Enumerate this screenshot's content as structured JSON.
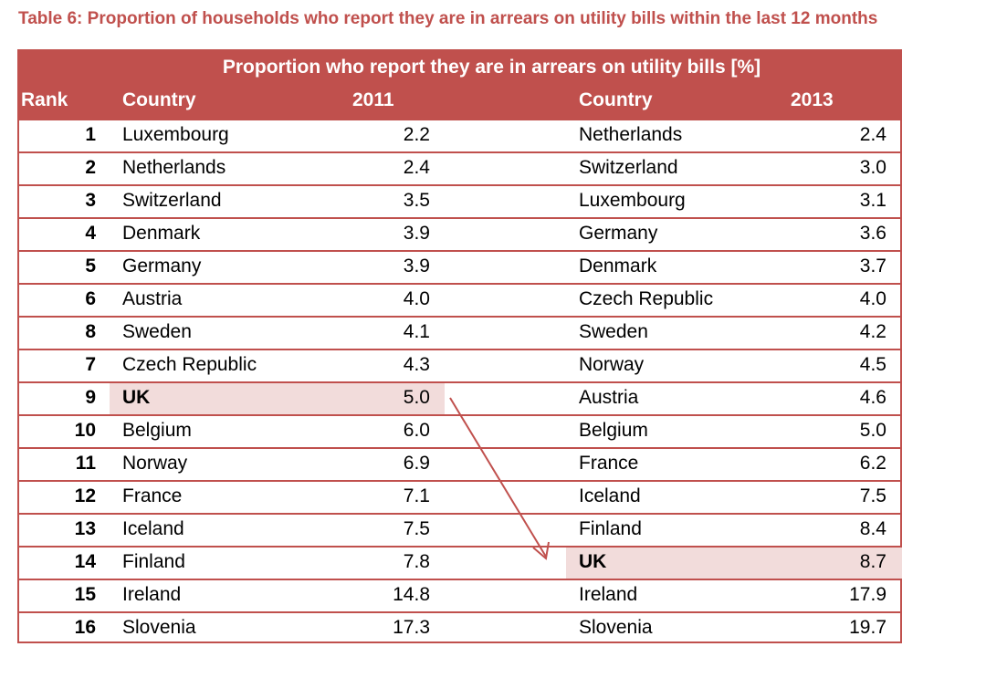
{
  "caption": "Table 6: Proportion of households who report they are in arrears on utility bills within the last 12 months",
  "header": {
    "title": "Proportion who report they are in arrears on utility bills [%]",
    "rank": "Rank",
    "country_a": "Country",
    "year_a": "2011",
    "country_b": "Country",
    "year_b": "2013"
  },
  "rows": [
    {
      "rank": "1",
      "c2011": "Luxembourg",
      "v2011": "2.2",
      "c2013": "Netherlands",
      "v2013": "2.4"
    },
    {
      "rank": "2",
      "c2011": "Netherlands",
      "v2011": "2.4",
      "c2013": "Switzerland",
      "v2013": "3.0"
    },
    {
      "rank": "3",
      "c2011": "Switzerland",
      "v2011": "3.5",
      "c2013": "Luxembourg",
      "v2013": "3.1"
    },
    {
      "rank": "4",
      "c2011": "Denmark",
      "v2011": "3.9",
      "c2013": "Germany",
      "v2013": "3.6"
    },
    {
      "rank": "5",
      "c2011": "Germany",
      "v2011": "3.9",
      "c2013": "Denmark",
      "v2013": "3.7"
    },
    {
      "rank": "6",
      "c2011": "Austria",
      "v2011": "4.0",
      "c2013": "Czech Republic",
      "v2013": "4.0"
    },
    {
      "rank": "8",
      "c2011": "Sweden",
      "v2011": "4.1",
      "c2013": "Sweden",
      "v2013": "4.2"
    },
    {
      "rank": "7",
      "c2011": "Czech Republic",
      "v2011": "4.3",
      "c2013": "Norway",
      "v2013": "4.5"
    },
    {
      "rank": "9",
      "c2011": "UK",
      "v2011": "5.0",
      "c2013": "Austria",
      "v2013": "4.6"
    },
    {
      "rank": "10",
      "c2011": "Belgium",
      "v2011": "6.0",
      "c2013": "Belgium",
      "v2013": "5.0"
    },
    {
      "rank": "11",
      "c2011": "Norway",
      "v2011": "6.9",
      "c2013": "France",
      "v2013": "6.2"
    },
    {
      "rank": "12",
      "c2011": "France",
      "v2011": "7.1",
      "c2013": "Iceland",
      "v2013": "7.5"
    },
    {
      "rank": "13",
      "c2011": "Iceland",
      "v2011": "7.5",
      "c2013": "Finland",
      "v2013": "8.4"
    },
    {
      "rank": "14",
      "c2011": "Finland",
      "v2011": "7.8",
      "c2013": "UK",
      "v2013": "8.7"
    },
    {
      "rank": "15",
      "c2011": "Ireland",
      "v2011": "14.8",
      "c2013": "Ireland",
      "v2013": "17.9"
    },
    {
      "rank": "16",
      "c2011": "Slovenia",
      "v2011": "17.3",
      "c2013": "Slovenia",
      "v2013": "19.7"
    }
  ],
  "highlight": {
    "country": "UK",
    "color": "#f2dcdb",
    "accent": "#c0504d"
  },
  "arrow_icon": "down-right-arrow-icon"
}
